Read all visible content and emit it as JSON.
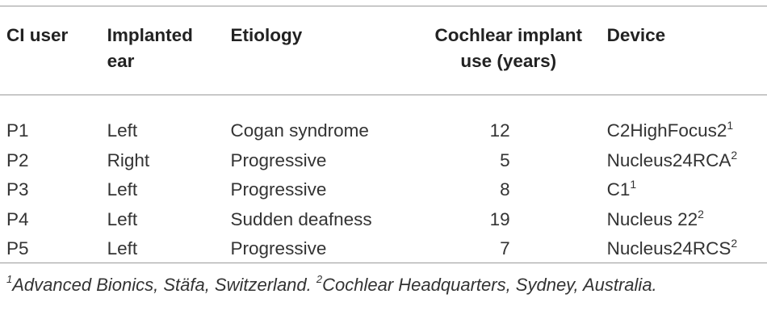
{
  "table": {
    "headers": [
      [
        "CI user"
      ],
      [
        "Implanted",
        "ear"
      ],
      [
        "Etiology"
      ],
      [
        "Cochlear implant",
        "use (years)"
      ],
      [
        "Device"
      ]
    ],
    "rows": [
      {
        "user": "P1",
        "ear": "Left",
        "etiology": "Cogan syndrome",
        "years": "12",
        "device": "C2HighFocus2",
        "device_sup": "1"
      },
      {
        "user": "P2",
        "ear": "Right",
        "etiology": "Progressive",
        "years": "5",
        "device": "Nucleus24RCA",
        "device_sup": "2"
      },
      {
        "user": "P3",
        "ear": "Left",
        "etiology": "Progressive",
        "years": "8",
        "device": "C1",
        "device_sup": "1"
      },
      {
        "user": "P4",
        "ear": "Left",
        "etiology": "Sudden deafness",
        "years": "19",
        "device": "Nucleus 22",
        "device_sup": "2"
      },
      {
        "user": "P5",
        "ear": "Left",
        "etiology": "Progressive",
        "years": "7",
        "device": "Nucleus24RCS",
        "device_sup": "2"
      }
    ]
  },
  "footnote": {
    "mark1": "1",
    "text1": "Advanced Bionics, Stäfa, Switzerland. ",
    "mark2": "2",
    "text2": "Cochlear Headquarters, Sydney, Australia."
  }
}
